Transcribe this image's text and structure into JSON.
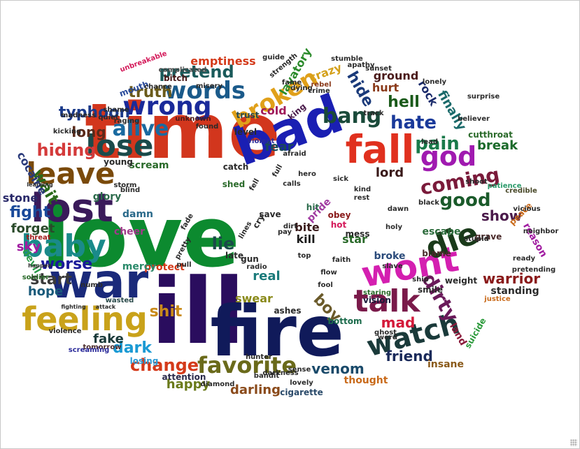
{
  "word_cloud": {
    "words": [
      {
        "text": "time",
        "color": "#d2361d"
      },
      {
        "text": "love",
        "color": "#0c8a2f"
      },
      {
        "text": "ill",
        "color": "#2a0d5e"
      },
      {
        "text": "fire",
        "color": "#101a5a"
      },
      {
        "text": "bad",
        "color": "#1a1fb3"
      },
      {
        "text": "war",
        "color": "#1a2a7a"
      },
      {
        "text": "lost",
        "color": "#3a1a5a"
      },
      {
        "text": "wont",
        "color": "#d41fb0"
      },
      {
        "text": "fall",
        "color": "#e0301e"
      },
      {
        "text": "feeling",
        "color": "#c9a21a"
      },
      {
        "text": "baby",
        "color": "#1a8a8a"
      },
      {
        "text": "leave",
        "color": "#7a4a0a"
      },
      {
        "text": "lose",
        "color": "#1a4a4a"
      },
      {
        "text": "talk",
        "color": "#7a1a4a"
      },
      {
        "text": "watch",
        "color": "#1a3a3a"
      },
      {
        "text": "die",
        "color": "#1a3a1a"
      },
      {
        "text": "god",
        "color": "#a01ab0"
      },
      {
        "text": "wrong",
        "color": "#1a2a9a"
      },
      {
        "text": "broken",
        "color": "#e0a01a"
      },
      {
        "text": "words",
        "color": "#1a5a8a"
      },
      {
        "text": "alive",
        "color": "#1a6aa0"
      },
      {
        "text": "bang",
        "color": "#1a4a3a"
      },
      {
        "text": "coming",
        "color": "#7a1a3a"
      },
      {
        "text": "favorite",
        "color": "#6a6a1a"
      },
      {
        "text": "dirty",
        "color": "#6a1a5a"
      },
      {
        "text": "good",
        "color": "#1a5a2a"
      },
      {
        "text": "change",
        "color": "#d43a1a"
      },
      {
        "text": "pain",
        "color": "#1a7a4a"
      },
      {
        "text": "hate",
        "color": "#1a3a9a"
      },
      {
        "text": "hiding",
        "color": "#d43a3a"
      },
      {
        "text": "typhoon",
        "color": "#1a3a8a"
      },
      {
        "text": "pretend",
        "color": "#1a5a5a"
      },
      {
        "text": "truth",
        "color": "#6a5a1a"
      },
      {
        "text": "hell",
        "color": "#1a5a1a"
      },
      {
        "text": "hide",
        "color": "#1a3a7a"
      },
      {
        "text": "long",
        "color": "#5a2a1a"
      },
      {
        "text": "fight",
        "color": "#1a4a9a"
      },
      {
        "text": "wait",
        "color": "#2a6a1a"
      },
      {
        "text": "worse",
        "color": "#1a1a9a"
      },
      {
        "text": "start",
        "color": "#3a3a3a"
      },
      {
        "text": "shit",
        "color": "#c98a1a"
      },
      {
        "text": "dark",
        "color": "#1a9ad4"
      },
      {
        "text": "lie",
        "color": "#1a4a4a"
      },
      {
        "text": "boy",
        "color": "#6a5a2a"
      },
      {
        "text": "mad",
        "color": "#d41a3a"
      },
      {
        "text": "friend",
        "color": "#1a2a5a"
      },
      {
        "text": "venom",
        "color": "#1a4a6a"
      },
      {
        "text": "warrior",
        "color": "#8a1a1a"
      },
      {
        "text": "show",
        "color": "#4a1a4a"
      },
      {
        "text": "happy",
        "color": "#6a7a1a"
      },
      {
        "text": "darling",
        "color": "#8a4a1a"
      },
      {
        "text": "fake",
        "color": "#1a3a3a"
      },
      {
        "text": "forget",
        "color": "#2a4a2a"
      },
      {
        "text": "hope",
        "color": "#1a5a7a"
      },
      {
        "text": "sky",
        "color": "#a01aa0"
      },
      {
        "text": "stone",
        "color": "#2a2a6a"
      },
      {
        "text": "finally",
        "color": "#1a6a6a"
      },
      {
        "text": "break",
        "color": "#1a6a2a"
      },
      {
        "text": "lord",
        "color": "#3a1a1a"
      },
      {
        "text": "fear",
        "color": "#1a4a5a"
      },
      {
        "text": "real",
        "color": "#1a7a7a"
      },
      {
        "text": "swear",
        "color": "#8a8a1a"
      },
      {
        "text": "crazy",
        "color": "#d4a01a"
      },
      {
        "text": "cold",
        "color": "#a01a5a"
      },
      {
        "text": "hurt",
        "color": "#8a3a1a"
      },
      {
        "text": "rock",
        "color": "#1a2a6a"
      },
      {
        "text": "ground",
        "color": "#4a1a1a"
      },
      {
        "text": "emptiness",
        "color": "#d43a1a"
      },
      {
        "text": "lavatory",
        "color": "#2a8a2a"
      },
      {
        "text": "cocaine",
        "color": "#2a3a7a"
      },
      {
        "text": "scream",
        "color": "#2a6a2a"
      },
      {
        "text": "glory",
        "color": "#2a6a4a"
      },
      {
        "text": "damn",
        "color": "#2a6a8a"
      },
      {
        "text": "cheer",
        "color": "#a03a8a"
      },
      {
        "text": "protect",
        "color": "#d43a1a"
      },
      {
        "text": "mercy",
        "color": "#2a8a6a"
      },
      {
        "text": "devil",
        "color": "#2a9a4a"
      },
      {
        "text": "kill",
        "color": "#1a1a1a"
      },
      {
        "text": "bite",
        "color": "#3a1a1a"
      },
      {
        "text": "star",
        "color": "#2a6a2a"
      },
      {
        "text": "broke",
        "color": "#2a4a7a"
      },
      {
        "text": "escape",
        "color": "#2a6a3a"
      },
      {
        "text": "reason",
        "color": "#a01aa0"
      },
      {
        "text": "standing",
        "color": "#2a2a2a"
      },
      {
        "text": "land",
        "color": "#8a1a3a"
      },
      {
        "text": "insane",
        "color": "#8a5a1a"
      },
      {
        "text": "thought",
        "color": "#c96a1a"
      },
      {
        "text": "cigarette",
        "color": "#2a4a6a"
      },
      {
        "text": "attention",
        "color": "#2a2a4a"
      },
      {
        "text": "losing",
        "color": "#2a9ad4"
      },
      {
        "text": "bottom",
        "color": "#1a6a4a"
      },
      {
        "text": "vision",
        "color": "#1a1a3a"
      },
      {
        "text": "suicide",
        "color": "#2a9a3a"
      },
      {
        "text": "grave",
        "color": "#4a2a2a"
      },
      {
        "text": "peace",
        "color": "#c96a1a"
      },
      {
        "text": "credible",
        "color": "#4a4a2a"
      },
      {
        "text": "patience",
        "color": "#2a9a6a"
      },
      {
        "text": "bitch",
        "color": "#4a1a1a"
      },
      {
        "text": "mouth",
        "color": "#2a4a9a"
      },
      {
        "text": "king",
        "color": "#4a1a4a"
      },
      {
        "text": "level",
        "color": "#2a2a2a"
      },
      {
        "text": "young",
        "color": "#2a2a2a"
      },
      {
        "text": "catch",
        "color": "#2a2a2a"
      },
      {
        "text": "shed",
        "color": "#2a6a2a"
      },
      {
        "text": "trust",
        "color": "#2a4a4a"
      },
      {
        "text": "violent",
        "color": "#2a2a9a"
      },
      {
        "text": "unknown",
        "color": "#4a1a1a"
      },
      {
        "text": "raging",
        "color": "#2a2a2a"
      },
      {
        "text": "pride",
        "color": "#a03aa0"
      },
      {
        "text": "obey",
        "color": "#8a1a1a"
      },
      {
        "text": "hot",
        "color": "#d41a5a"
      },
      {
        "text": "mess",
        "color": "#2a2a2a"
      },
      {
        "text": "save",
        "color": "#2a2a2a"
      },
      {
        "text": "late",
        "color": "#2a2a2a"
      },
      {
        "text": "gun",
        "color": "#2a2a2a"
      },
      {
        "text": "ashes",
        "color": "#2a2a2a"
      },
      {
        "text": "smile",
        "color": "#2a2a2a"
      },
      {
        "text": "weight",
        "color": "#2a2a2a"
      },
      {
        "text": "blame",
        "color": "#4a2a2a"
      },
      {
        "text": "slave",
        "color": "#2a2a2a"
      },
      {
        "text": "flow",
        "color": "#2a2a2a"
      },
      {
        "text": "hit",
        "color": "#2a6a4a"
      },
      {
        "text": "numb",
        "color": "#2a2a2a"
      },
      {
        "text": "wasted",
        "color": "#2a4a4a"
      },
      {
        "text": "tomorrow",
        "color": "#4a2a2a"
      },
      {
        "text": "kicking",
        "color": "#2a2a2a"
      },
      {
        "text": "complicated",
        "color": "#4a4a4a"
      },
      {
        "text": "unbreakable",
        "color": "#d41a5a"
      },
      {
        "text": "soldier",
        "color": "#2a6a2a"
      },
      {
        "text": "threat",
        "color": "#a01a1a"
      },
      {
        "text": "fame",
        "color": "#2a2a2a"
      },
      {
        "text": "crime",
        "color": "#2a2a2a"
      },
      {
        "text": "rebel",
        "color": "#8a3a1a"
      },
      {
        "text": "guide",
        "color": "#2a2a2a"
      },
      {
        "text": "stumble",
        "color": "#2a2a2a"
      },
      {
        "text": "apathy",
        "color": "#2a2a2a"
      },
      {
        "text": "sunset",
        "color": "#2a2a2a"
      },
      {
        "text": "strength",
        "color": "#2a2a2a"
      },
      {
        "text": "believer",
        "color": "#2a2a2a"
      },
      {
        "text": "cutthroat",
        "color": "#2a6a2a"
      },
      {
        "text": "shoot",
        "color": "#2a2a2a"
      },
      {
        "text": "pretending",
        "color": "#2a2a2a"
      },
      {
        "text": "neighbor",
        "color": "#2a2a2a"
      },
      {
        "text": "justice",
        "color": "#c96a1a"
      },
      {
        "text": "diamond",
        "color": "#2a2a2a"
      },
      {
        "text": "darkness",
        "color": "#2a2a2a"
      },
      {
        "text": "lovely",
        "color": "#2a2a2a"
      },
      {
        "text": "screaming",
        "color": "#2a2a9a"
      },
      {
        "text": "violence",
        "color": "#2a2a2a"
      },
      {
        "text": "ghost",
        "color": "#2a2a2a"
      },
      {
        "text": "staring",
        "color": "#2a6a2a"
      },
      {
        "text": "word",
        "color": "#2a2a2a"
      },
      {
        "text": "dawn",
        "color": "#2a2a2a"
      },
      {
        "text": "dirt",
        "color": "#2a2a2a"
      },
      {
        "text": "cry",
        "color": "#2a2a2a"
      },
      {
        "text": "calls",
        "color": "#2a2a2a"
      },
      {
        "text": "kind",
        "color": "#2a2a2a"
      },
      {
        "text": "rest",
        "color": "#2a2a2a"
      },
      {
        "text": "full",
        "color": "#2a2a2a"
      },
      {
        "text": "fell",
        "color": "#2a2a2a"
      },
      {
        "text": "holy",
        "color": "#2a2a2a"
      },
      {
        "text": "hero",
        "color": "#2a2a2a"
      },
      {
        "text": "afraid",
        "color": "#2a2a2a"
      },
      {
        "text": "storm",
        "color": "#2a2a2a"
      },
      {
        "text": "blind",
        "color": "#2a2a2a"
      },
      {
        "text": "pull",
        "color": "#2a2a2a"
      },
      {
        "text": "pretty",
        "color": "#2a2a2a"
      },
      {
        "text": "bandit",
        "color": "#2a2a2a"
      },
      {
        "text": "surprise",
        "color": "#2a2a2a"
      },
      {
        "text": "lonely",
        "color": "#2a2a2a"
      },
      {
        "text": "lead",
        "color": "#2a2a2a"
      },
      {
        "text": "shame",
        "color": "#2a2a2a"
      },
      {
        "text": "quiet",
        "color": "#2a2a2a"
      },
      {
        "text": "learning",
        "color": "#2a2a2a"
      },
      {
        "text": "happen",
        "color": "#2a2a2a"
      },
      {
        "text": "attack",
        "color": "#2a2a2a"
      },
      {
        "text": "fighting",
        "color": "#2a2a2a"
      },
      {
        "text": "black",
        "color": "#2a2a2a"
      },
      {
        "text": "dying",
        "color": "#2a2a2a"
      },
      {
        "text": "found",
        "color": "#2a2a2a"
      },
      {
        "text": "fade",
        "color": "#2a2a2a"
      },
      {
        "text": "lines",
        "color": "#2a2a2a"
      },
      {
        "text": "top",
        "color": "#2a2a2a"
      },
      {
        "text": "radio",
        "color": "#2a2a2a"
      },
      {
        "text": "pay",
        "color": "#2a2a2a"
      },
      {
        "text": "track",
        "color": "#2a2a2a"
      },
      {
        "text": "ship",
        "color": "#2a2a2a"
      },
      {
        "text": "sense",
        "color": "#2a2a2a"
      },
      {
        "text": "misery",
        "color": "#2a2a2a"
      },
      {
        "text": "chance",
        "color": "#2a2a2a"
      },
      {
        "text": "sick",
        "color": "#2a2a2a"
      },
      {
        "text": "faith",
        "color": "#2a2a2a"
      },
      {
        "text": "fool",
        "color": "#2a2a2a"
      },
      {
        "text": "hunter",
        "color": "#2a2a2a"
      },
      {
        "text": "stupid",
        "color": "#2a2a2a"
      },
      {
        "text": "vicious",
        "color": "#2a2a2a"
      },
      {
        "text": "madness",
        "color": "#2a2a2a"
      },
      {
        "text": "ready",
        "color": "#2a2a2a"
      }
    ]
  }
}
